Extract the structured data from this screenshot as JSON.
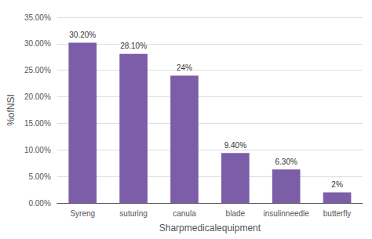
{
  "chart_data": {
    "type": "bar",
    "categories": [
      "Syreng",
      "suturing",
      "canula",
      "blade",
      "insulinneedle",
      "butterfly"
    ],
    "values": [
      30.2,
      28.1,
      24.0,
      9.4,
      6.3,
      2.0
    ],
    "value_labels": [
      "30.20%",
      "28.10%",
      "24%",
      "9.40%",
      "6.30%",
      "2%"
    ],
    "data_labels": true,
    "color": "#7B5EA7",
    "xlabel": "Sharpmedicalequipment",
    "ylabel": "%ofNSI",
    "ylim": [
      0,
      35
    ],
    "yticks": [
      {
        "value": 0,
        "label": "0.00%"
      },
      {
        "value": 5,
        "label": "5.00%"
      },
      {
        "value": 10,
        "label": "10.00%"
      },
      {
        "value": 15,
        "label": "15.00%"
      },
      {
        "value": 20,
        "label": "20.00%"
      },
      {
        "value": 25,
        "label": "25.00%"
      },
      {
        "value": 30,
        "label": "30.00%"
      },
      {
        "value": 35,
        "label": "35.00%"
      }
    ],
    "grid": true
  }
}
